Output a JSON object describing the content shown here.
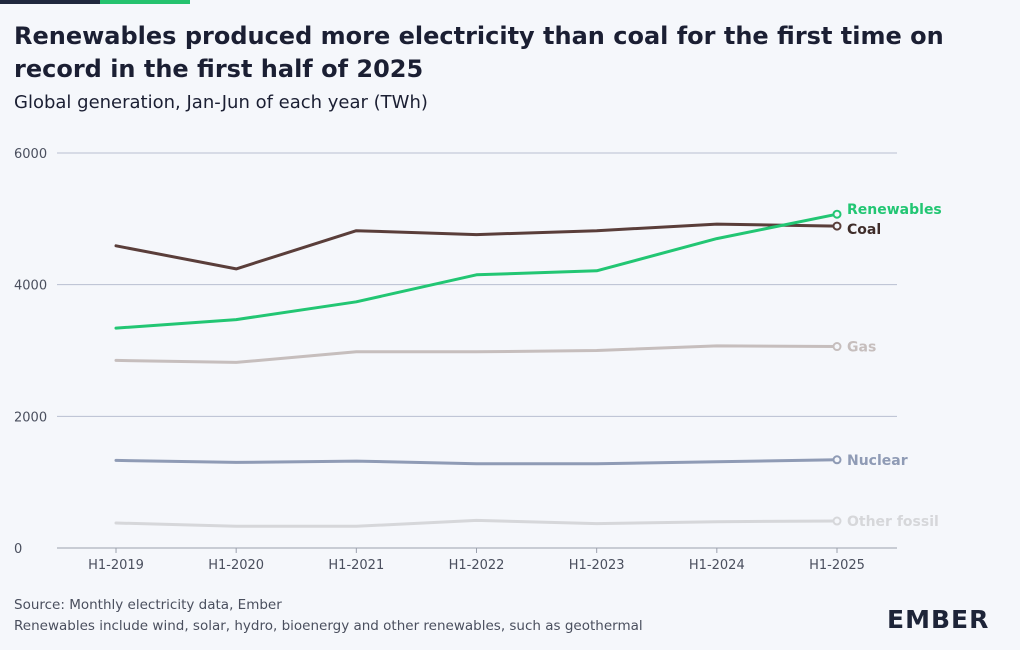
{
  "header": {
    "title": "Renewables produced more electricity than coal for the first time on record in the first half of 2025",
    "subtitle": "Global generation, Jan-Jun of each year (TWh)"
  },
  "footer": {
    "source": "Source: Monthly electricity data, Ember",
    "note": "Renewables include wind, solar, hydro, bioenergy and other renewables, such as geothermal"
  },
  "brand": {
    "logo_text": "EMBER"
  },
  "colors": {
    "renewables": "#22c673",
    "coal": "#5a3e3a",
    "gas": "#c6bebd",
    "nuclear": "#8f9bb5",
    "other_fossil": "#d6d7da"
  },
  "chart_data": {
    "type": "line",
    "title": "Renewables produced more electricity than coal for the first time on record in the first half of 2025",
    "subtitle": "Global generation, Jan-Jun of each year (TWh)",
    "xlabel": "",
    "ylabel": "",
    "categories": [
      "H1-2019",
      "H1-2020",
      "H1-2021",
      "H1-2022",
      "H1-2023",
      "H1-2024",
      "H1-2025"
    ],
    "yticks": [
      "0",
      "2000",
      "4000",
      "6000"
    ],
    "ylim": [
      0,
      6000
    ],
    "grid": true,
    "legend": "end-of-line labels",
    "series": [
      {
        "name": "Renewables",
        "key": "renewables",
        "values": [
          3340,
          3470,
          3740,
          4150,
          4210,
          4700,
          5070
        ]
      },
      {
        "name": "Coal",
        "key": "coal",
        "values": [
          4590,
          4240,
          4820,
          4760,
          4820,
          4920,
          4890
        ]
      },
      {
        "name": "Gas",
        "key": "gas",
        "values": [
          2850,
          2820,
          2980,
          2980,
          3000,
          3070,
          3060
        ]
      },
      {
        "name": "Nuclear",
        "key": "nuclear",
        "values": [
          1330,
          1300,
          1320,
          1280,
          1280,
          1310,
          1340
        ]
      },
      {
        "name": "Other fossil",
        "key": "other_fossil",
        "values": [
          380,
          330,
          330,
          420,
          370,
          400,
          410
        ]
      }
    ]
  }
}
